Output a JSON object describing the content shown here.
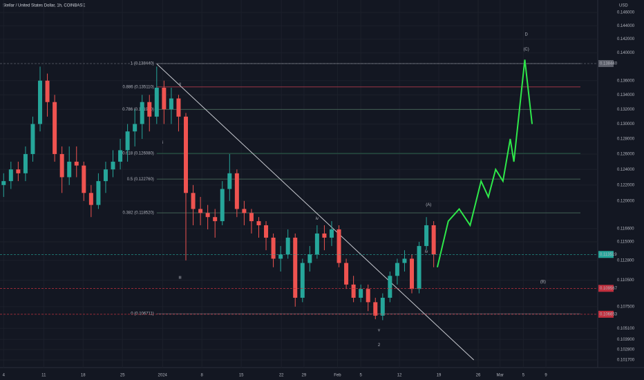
{
  "chart_data": {
    "type": "candlestick",
    "title": "Stellar / United States Dollar, 1h, COINBASE",
    "currency": "USD",
    "log_scale": true,
    "grid": true,
    "up_color": "#26a69a",
    "down_color": "#ef5350",
    "xlim": [
      0,
      82
    ],
    "ylim": [
      0.1017,
      0.146
    ],
    "xticks": [
      {
        "value": 0.5,
        "label": "4"
      },
      {
        "value": 6,
        "label": "11"
      },
      {
        "value": 11.4,
        "label": "18"
      },
      {
        "value": 16.8,
        "label": "25"
      },
      {
        "value": 22.3,
        "label": "2024"
      },
      {
        "value": 27.7,
        "label": "8"
      },
      {
        "value": 33.1,
        "label": "15"
      },
      {
        "value": 38.6,
        "label": "22"
      },
      {
        "value": 41.7,
        "label": "29"
      },
      {
        "value": 46.3,
        "label": "Feb"
      },
      {
        "value": 49.5,
        "label": "5"
      },
      {
        "value": 54.8,
        "label": "12"
      },
      {
        "value": 60.2,
        "label": "19"
      },
      {
        "value": 65.6,
        "label": "26"
      },
      {
        "value": 68.6,
        "label": "Mar"
      },
      {
        "value": 71.8,
        "label": "5"
      },
      {
        "value": 74.9,
        "label": "9"
      }
    ],
    "yticks": [
      {
        "value": 0.146,
        "label": "0.146000"
      },
      {
        "value": 0.144,
        "label": "0.144000"
      },
      {
        "value": 0.142,
        "label": "0.142000"
      },
      {
        "value": 0.14,
        "label": "0.140000"
      },
      {
        "value": 0.136,
        "label": "0.136000"
      },
      {
        "value": 0.134,
        "label": "0.134000"
      },
      {
        "value": 0.132,
        "label": "0.132000"
      },
      {
        "value": 0.13,
        "label": "0.130000"
      },
      {
        "value": 0.128,
        "label": "0.128000"
      },
      {
        "value": 0.126,
        "label": "0.126000"
      },
      {
        "value": 0.124,
        "label": "0.124000"
      },
      {
        "value": 0.122,
        "label": "0.122000"
      },
      {
        "value": 0.12,
        "label": "0.120000"
      },
      {
        "value": 0.1166,
        "label": "0.116600"
      },
      {
        "value": 0.115,
        "label": "0.115000"
      },
      {
        "value": 0.1128,
        "label": "0.112800"
      },
      {
        "value": 0.1105,
        "label": "0.110500"
      },
      {
        "value": 0.1075,
        "label": "0.107500"
      },
      {
        "value": 0.1051,
        "label": "0.105100"
      },
      {
        "value": 0.1039,
        "label": "0.103900"
      },
      {
        "value": 0.1028,
        "label": "0.102800"
      },
      {
        "value": 0.1017,
        "label": "0.101700"
      }
    ],
    "candles": {
      "open": [
        0.122,
        0.1225,
        0.124,
        0.1235,
        0.126,
        0.13,
        0.136,
        0.133,
        0.126,
        0.123,
        0.125,
        0.1245,
        0.121,
        0.1195,
        0.1225,
        0.124,
        0.125,
        0.1265,
        0.129,
        0.13,
        0.133,
        0.131,
        0.135,
        0.132,
        0.1335,
        0.131,
        0.121,
        0.119,
        0.1185,
        0.118,
        0.1175,
        0.1215,
        0.1235,
        0.119,
        0.1185,
        0.1175,
        0.117,
        0.1155,
        0.113,
        0.1135,
        0.1155,
        0.1085,
        0.1125,
        0.1135,
        0.116,
        0.1155,
        0.1165,
        0.1125,
        0.11,
        0.1085,
        0.1095,
        0.108,
        0.1065,
        0.1085,
        0.111,
        0.1125,
        0.113,
        0.1095,
        0.1145,
        0.117
      ],
      "high": [
        0.1235,
        0.125,
        0.125,
        0.127,
        0.131,
        0.138,
        0.137,
        0.134,
        0.127,
        0.127,
        0.127,
        0.125,
        0.122,
        0.1235,
        0.125,
        0.1265,
        0.128,
        0.13,
        0.132,
        0.134,
        0.134,
        0.138,
        0.136,
        0.135,
        0.134,
        0.1315,
        0.122,
        0.1205,
        0.1195,
        0.119,
        0.1225,
        0.126,
        0.124,
        0.12,
        0.119,
        0.118,
        0.1175,
        0.116,
        0.1145,
        0.1165,
        0.116,
        0.113,
        0.1145,
        0.117,
        0.117,
        0.1175,
        0.117,
        0.113,
        0.111,
        0.11,
        0.11,
        0.1085,
        0.109,
        0.1115,
        0.113,
        0.114,
        0.1135,
        0.115,
        0.118,
        0.1175
      ],
      "low": [
        0.1205,
        0.1215,
        0.1225,
        0.1225,
        0.125,
        0.129,
        0.131,
        0.125,
        0.121,
        0.122,
        0.123,
        0.12,
        0.118,
        0.119,
        0.121,
        0.123,
        0.124,
        0.125,
        0.127,
        0.128,
        0.129,
        0.13,
        0.13,
        0.13,
        0.129,
        0.1128,
        0.117,
        0.117,
        0.1165,
        0.1155,
        0.117,
        0.12,
        0.118,
        0.117,
        0.116,
        0.1155,
        0.114,
        0.112,
        0.1115,
        0.113,
        0.1075,
        0.108,
        0.1115,
        0.113,
        0.114,
        0.1145,
        0.112,
        0.1095,
        0.108,
        0.108,
        0.107,
        0.1061,
        0.106,
        0.108,
        0.11,
        0.1115,
        0.109,
        0.109,
        0.114,
        0.112
      ],
      "close": [
        0.1225,
        0.124,
        0.1235,
        0.126,
        0.13,
        0.136,
        0.133,
        0.126,
        0.123,
        0.125,
        0.1245,
        0.121,
        0.1195,
        0.1225,
        0.124,
        0.125,
        0.1265,
        0.129,
        0.13,
        0.133,
        0.131,
        0.135,
        0.132,
        0.1335,
        0.131,
        0.121,
        0.119,
        0.1185,
        0.118,
        0.1175,
        0.1215,
        0.1235,
        0.119,
        0.1185,
        0.1175,
        0.117,
        0.1155,
        0.113,
        0.1135,
        0.1155,
        0.1085,
        0.1125,
        0.1135,
        0.116,
        0.1155,
        0.1165,
        0.1125,
        0.11,
        0.1085,
        0.1095,
        0.108,
        0.1065,
        0.1085,
        0.111,
        0.1125,
        0.113,
        0.1095,
        0.1145,
        0.117,
        0.1135
      ]
    },
    "projection": {
      "color": "#2ee84a",
      "x": [
        60,
        61.5,
        63,
        64.5,
        66,
        67,
        68,
        69,
        70,
        70.5,
        72,
        73
      ],
      "values": [
        0.112,
        0.1175,
        0.119,
        0.117,
        0.1225,
        0.1205,
        0.124,
        0.1225,
        0.128,
        0.125,
        0.139,
        0.13
      ]
    },
    "trendline": {
      "x": [
        21.5,
        65
      ],
      "values": [
        0.1384,
        0.1017
      ]
    },
    "levels": [
      {
        "value": 0.13844,
        "label": "1 (0.138440)",
        "color": "#9598a1"
      },
      {
        "value": 0.13511,
        "label": "0.886 (0.135110)",
        "color": "#b2384a"
      },
      {
        "value": 0.13199,
        "label": "0.786 (0.131990)",
        "color": "#4a6b5c"
      },
      {
        "value": 0.12608,
        "label": "0.618 (0.126080)",
        "color": "#2e6a4f"
      },
      {
        "value": 0.12276,
        "label": "0.5 (0.122760)",
        "color": "#4a6b5c"
      },
      {
        "value": 0.11852,
        "label": "0.382 (0.118520)",
        "color": "#4a6b5c"
      },
      {
        "value": 0.106711,
        "label": "0 (0.106711)",
        "color": "#5d606b"
      }
    ],
    "price_tags": [
      {
        "value": 0.13844,
        "label": "0.138440",
        "color": "#5d606b"
      },
      {
        "value": 0.1135,
        "label": "0.113519",
        "color": "#26a69a"
      },
      {
        "value": 0.109567,
        "label": "0.109567",
        "color": "#c2303e"
      },
      {
        "value": 0.106653,
        "label": "0.106653",
        "color": "#c2303e"
      }
    ],
    "annotations": [
      {
        "text": "(A)",
        "x": 58.8,
        "y": 0.1195
      },
      {
        "text": "(B)",
        "x": 74.5,
        "y": 0.1103
      },
      {
        "text": "(C)",
        "x": 72.2,
        "y": 0.1405
      },
      {
        "text": "D",
        "x": 72.2,
        "y": 0.1427
      },
      {
        "text": "i",
        "x": 22.3,
        "y": 0.1275
      },
      {
        "text": "ii",
        "x": 24.7,
        "y": 0.1355
      },
      {
        "text": "iii",
        "x": 24.7,
        "y": 0.1108
      },
      {
        "text": "iv",
        "x": 43.5,
        "y": 0.1178
      },
      {
        "text": "v",
        "x": 52,
        "y": 0.1049
      },
      {
        "text": "2",
        "x": 52,
        "y": 0.1033
      },
      {
        "text": "iv",
        "x": 58.5,
        "y": 0.1138
      }
    ]
  }
}
